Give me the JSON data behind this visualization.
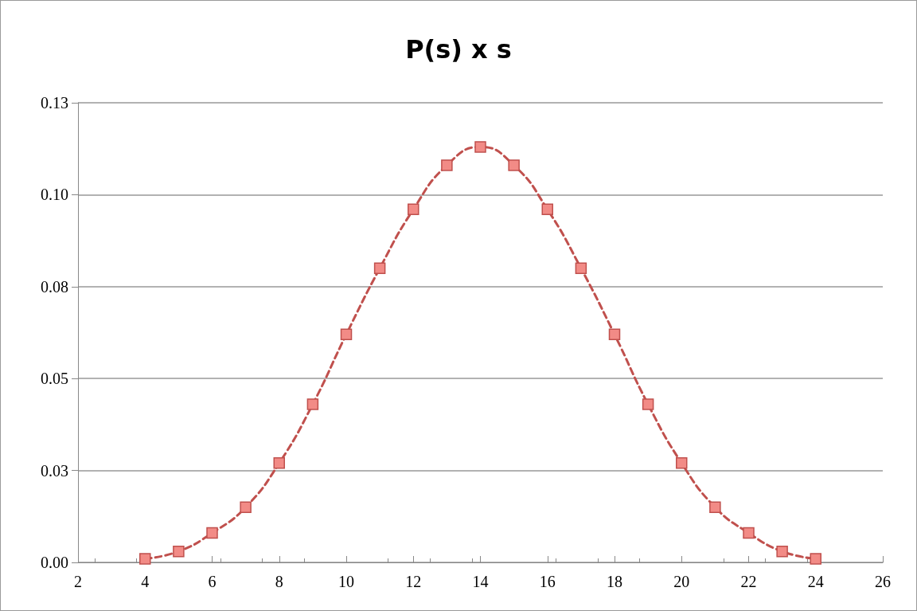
{
  "chart_data": {
    "type": "line",
    "title": "P(s) x s",
    "x": [
      4,
      5,
      6,
      7,
      8,
      9,
      10,
      11,
      12,
      13,
      14,
      15,
      16,
      17,
      18,
      19,
      20,
      21,
      22,
      23,
      24
    ],
    "series": [
      {
        "color": "#c0504d",
        "values": [
          0.001,
          0.003,
          0.008,
          0.015,
          0.027,
          0.043,
          0.062,
          0.08,
          0.096,
          0.108,
          0.113,
          0.108,
          0.096,
          0.08,
          0.062,
          0.043,
          0.027,
          0.015,
          0.008,
          0.003,
          0.001
        ]
      }
    ],
    "xlim": [
      2,
      26
    ],
    "xticks": [
      2,
      4,
      6,
      8,
      10,
      12,
      14,
      16,
      18,
      20,
      22,
      24,
      26
    ],
    "ylim": [
      0,
      0.125
    ],
    "yticks": [
      {
        "value": 0,
        "label": "0.00"
      },
      {
        "value": 0.025,
        "label": "0.03"
      },
      {
        "value": 0.05,
        "label": "0.05"
      },
      {
        "value": 0.075,
        "label": "0.08"
      },
      {
        "value": 0.1,
        "label": "0.10"
      },
      {
        "value": 0.125,
        "label": "0.13"
      }
    ],
    "grid": "y",
    "marker": "square",
    "line_style": "dashed"
  }
}
